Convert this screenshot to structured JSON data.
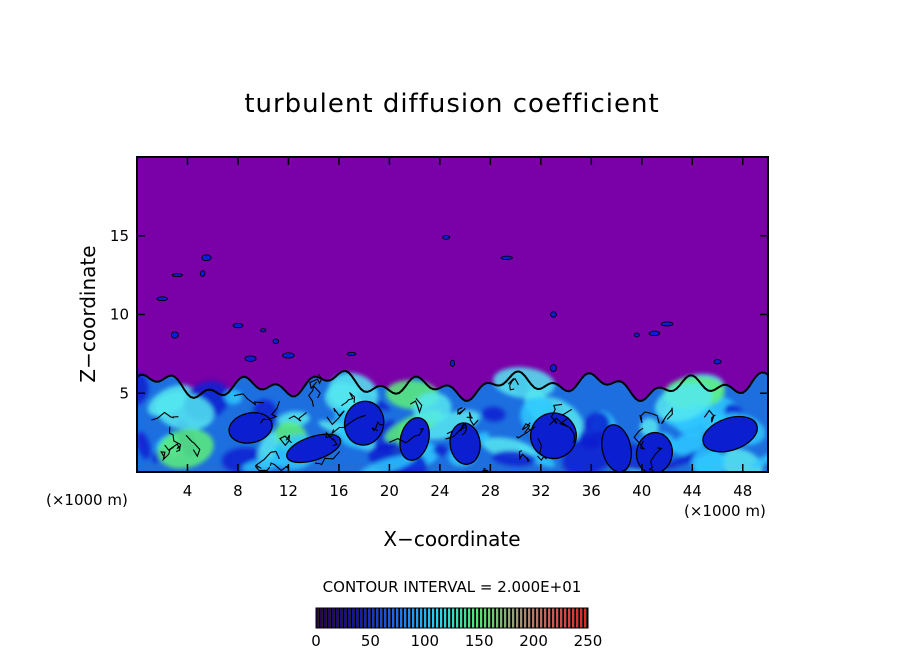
{
  "chart_data": {
    "type": "heatmap",
    "title": "turbulent diffusion coefficient",
    "xlabel": "X−coordinate",
    "ylabel": "Z−coordinate",
    "x_unit": "(×1000 m)",
    "x_unit_right": "(×1000 m)",
    "xlim": [
      0,
      50
    ],
    "ylim": [
      0,
      20
    ],
    "x_ticks": [
      4,
      8,
      12,
      16,
      20,
      24,
      28,
      32,
      36,
      40,
      44,
      48
    ],
    "y_ticks": [
      5,
      10,
      15
    ],
    "contour_interval_text": "CONTOUR INTERVAL = 2.000E+01",
    "colorbar": {
      "min": 0,
      "max": 250,
      "ticks": [
        0,
        50,
        100,
        150,
        200,
        250
      ]
    },
    "background_value": 0,
    "turbulent_layer": {
      "top_z": 6,
      "top_z_range": [
        4.5,
        6.2
      ]
    },
    "colors": {
      "background": "#7a00a8",
      "layer_base": "#1d6fe0",
      "layer_dark": "#0b1fd0",
      "layer_light": "#2ec8ff",
      "layer_cyan": "#55e8f0",
      "layer_green": "#5cf07a",
      "contour": "#000000"
    }
  }
}
